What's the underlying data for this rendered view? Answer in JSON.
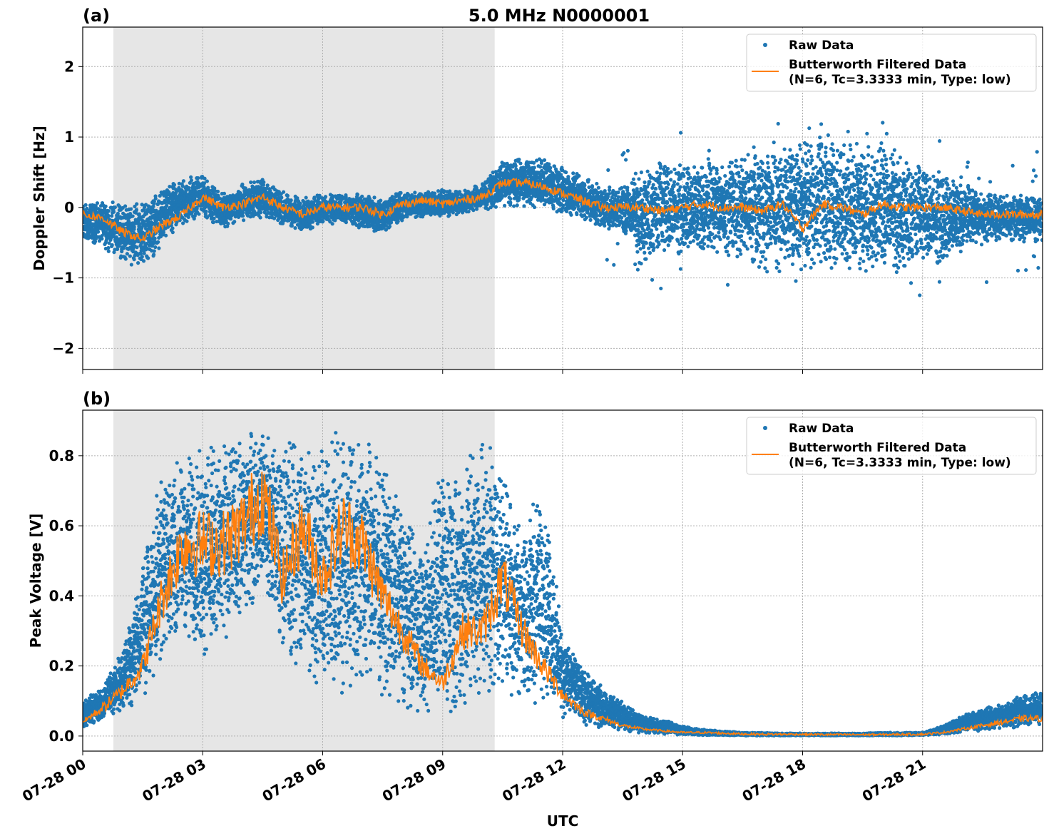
{
  "chart_data": [
    {
      "type": "scatter",
      "panel_label": "(a)",
      "title": "5.0 MHz N0000001",
      "xlabel": "",
      "ylabel": "Doppler Shift [Hz]",
      "xlim_hours_utc": [
        0,
        24
      ],
      "ylim": [
        -2.3,
        2.56
      ],
      "yticks": [
        -2,
        -1,
        0,
        1,
        2
      ],
      "ytick_labels": [
        "−2",
        "−1",
        "0",
        "1",
        "2"
      ],
      "grid": true,
      "legend_placement": "top-right",
      "shaded_interval_utc": [
        "07-28 00:46",
        "07-28 10:18"
      ],
      "shade_color": "#e6e6e6",
      "time_hours": [
        0,
        0.5,
        1,
        1.5,
        2,
        2.5,
        3,
        3.5,
        4,
        4.5,
        5,
        5.5,
        6,
        6.5,
        7,
        7.5,
        8,
        8.5,
        9,
        9.5,
        10,
        10.5,
        11,
        11.5,
        12,
        12.5,
        13,
        13.5,
        14,
        14.5,
        15,
        15.5,
        16,
        16.5,
        17,
        17.5,
        18,
        18.5,
        19,
        19.5,
        20,
        20.5,
        21,
        21.5,
        22,
        22.5,
        23,
        23.5,
        24
      ],
      "series": [
        {
          "name": "Raw Data",
          "kind": "points",
          "color": "#1f77b4",
          "lower": [
            -0.5,
            -0.55,
            -0.8,
            -0.85,
            -0.6,
            -0.3,
            -0.15,
            -0.3,
            -0.2,
            -0.15,
            -0.3,
            -0.35,
            -0.25,
            -0.25,
            -0.3,
            -0.4,
            -0.2,
            -0.15,
            -0.15,
            -0.1,
            -0.05,
            0.0,
            0.0,
            -0.05,
            -0.1,
            -0.2,
            -0.3,
            -0.35,
            -0.8,
            -0.7,
            -0.6,
            -0.7,
            -0.7,
            -0.8,
            -0.9,
            -0.9,
            -0.9,
            -1.0,
            -1.0,
            -0.9,
            -0.9,
            -0.9,
            -0.8,
            -0.8,
            -0.6,
            -0.5,
            -0.5,
            -0.5,
            -0.5
          ],
          "upper": [
            0.1,
            0.1,
            0.1,
            0.1,
            0.3,
            0.45,
            0.5,
            0.2,
            0.35,
            0.45,
            0.25,
            0.15,
            0.2,
            0.2,
            0.2,
            0.15,
            0.25,
            0.25,
            0.25,
            0.25,
            0.35,
            0.7,
            0.75,
            0.7,
            0.65,
            0.45,
            0.3,
            0.3,
            0.6,
            0.7,
            0.6,
            0.7,
            0.7,
            0.8,
            0.9,
            0.9,
            1.0,
            1.1,
            1.0,
            0.9,
            0.9,
            0.8,
            0.6,
            0.5,
            0.4,
            0.25,
            0.2,
            0.2,
            0.2
          ]
        },
        {
          "name": "Butterworth Filtered Data\n(N=6, Tc=3.3333 min, Type: low)",
          "kind": "line",
          "color": "#ff7f0e",
          "values": [
            -0.1,
            -0.15,
            -0.35,
            -0.45,
            -0.25,
            -0.1,
            0.15,
            0.0,
            0.05,
            0.15,
            0.0,
            -0.1,
            0.0,
            0.0,
            0.0,
            -0.1,
            0.05,
            0.1,
            0.05,
            0.1,
            0.15,
            0.35,
            0.35,
            0.3,
            0.2,
            0.1,
            0.0,
            0.0,
            0.0,
            -0.05,
            0.0,
            0.05,
            0.0,
            0.0,
            -0.05,
            0.05,
            -0.3,
            0.05,
            0.0,
            -0.1,
            0.05,
            0.0,
            0.0,
            0.0,
            -0.05,
            -0.1,
            -0.1,
            -0.1,
            -0.1
          ]
        }
      ],
      "legend": [
        "Raw Data",
        "Butterworth Filtered Data",
        "(N=6, Tc=3.3333 min, Type: low)"
      ]
    },
    {
      "type": "scatter",
      "panel_label": "(b)",
      "title": "",
      "xlabel": "UTC",
      "ylabel": "Peak Voltage [V]",
      "xlim_hours_utc": [
        0,
        24
      ],
      "ylim": [
        -0.043,
        0.93
      ],
      "yticks": [
        0.0,
        0.2,
        0.4,
        0.6,
        0.8
      ],
      "ytick_labels": [
        "0.0",
        "0.2",
        "0.4",
        "0.6",
        "0.8"
      ],
      "xticks_hours": [
        0,
        3,
        6,
        9,
        12,
        15,
        18,
        21
      ],
      "xtick_labels": [
        "07-28 00",
        "07-28 03",
        "07-28 06",
        "07-28 09",
        "07-28 12",
        "07-28 15",
        "07-28 18",
        "07-28 21"
      ],
      "grid": true,
      "legend_placement": "top-right",
      "shaded_interval_utc": [
        "07-28 00:46",
        "07-28 10:18"
      ],
      "shade_color": "#e6e6e6",
      "time_hours": [
        0,
        0.5,
        1,
        1.5,
        2,
        2.5,
        3,
        3.5,
        4,
        4.5,
        5,
        5.5,
        6,
        6.5,
        7,
        7.5,
        8,
        8.5,
        9,
        9.5,
        10,
        10.5,
        11,
        11.5,
        12,
        12.5,
        13,
        13.5,
        14,
        14.5,
        15,
        15.5,
        16,
        16.5,
        17,
        17.5,
        18,
        18.5,
        19,
        19.5,
        20,
        20.5,
        21,
        21.5,
        22,
        22.5,
        23,
        23.5,
        24
      ],
      "series": [
        {
          "name": "Raw Data",
          "kind": "points",
          "color": "#1f77b4",
          "lower": [
            0.02,
            0.04,
            0.07,
            0.1,
            0.2,
            0.25,
            0.22,
            0.25,
            0.3,
            0.45,
            0.2,
            0.15,
            0.1,
            0.1,
            0.12,
            0.1,
            0.07,
            0.05,
            0.04,
            0.05,
            0.08,
            0.12,
            0.1,
            0.08,
            0.05,
            0.03,
            0.02,
            0.01,
            0.005,
            0.003,
            0.002,
            0.002,
            0.002,
            0.001,
            0.001,
            0.001,
            0.001,
            0.001,
            0.001,
            0.001,
            0.001,
            0.001,
            0.002,
            0.003,
            0.01,
            0.015,
            0.02,
            0.025,
            0.03
          ],
          "upper": [
            0.1,
            0.15,
            0.25,
            0.5,
            0.78,
            0.82,
            0.84,
            0.85,
            0.87,
            0.88,
            0.87,
            0.88,
            0.87,
            0.87,
            0.88,
            0.8,
            0.7,
            0.55,
            0.8,
            0.82,
            0.85,
            0.8,
            0.6,
            0.75,
            0.3,
            0.2,
            0.14,
            0.1,
            0.06,
            0.05,
            0.03,
            0.02,
            0.015,
            0.01,
            0.01,
            0.008,
            0.008,
            0.008,
            0.008,
            0.008,
            0.01,
            0.01,
            0.01,
            0.03,
            0.06,
            0.08,
            0.1,
            0.12,
            0.13
          ]
        },
        {
          "name": "Butterworth Filtered Data\n(N=6, Tc=3.3333 min, Type: low)",
          "kind": "line",
          "color": "#ff7f0e",
          "values": [
            0.04,
            0.08,
            0.13,
            0.2,
            0.4,
            0.55,
            0.55,
            0.55,
            0.6,
            0.7,
            0.45,
            0.6,
            0.45,
            0.6,
            0.55,
            0.4,
            0.3,
            0.2,
            0.15,
            0.3,
            0.3,
            0.45,
            0.3,
            0.2,
            0.12,
            0.07,
            0.05,
            0.03,
            0.02,
            0.015,
            0.01,
            0.01,
            0.008,
            0.006,
            0.005,
            0.005,
            0.005,
            0.004,
            0.004,
            0.004,
            0.004,
            0.005,
            0.005,
            0.01,
            0.02,
            0.03,
            0.04,
            0.05,
            0.05
          ]
        }
      ],
      "legend": [
        "Raw Data",
        "Butterworth Filtered Data",
        "(N=6, Tc=3.3333 min, Type: low)"
      ]
    }
  ]
}
